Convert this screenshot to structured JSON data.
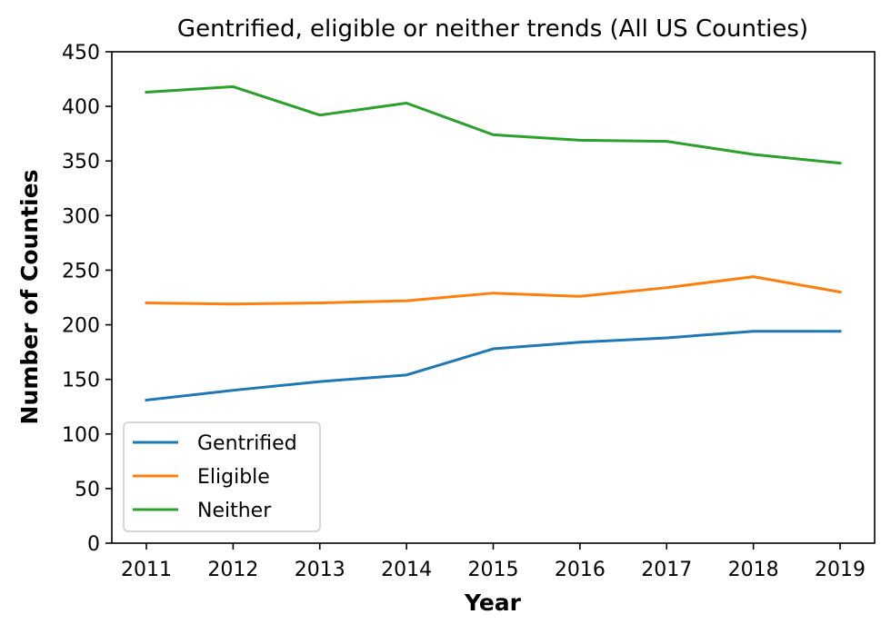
{
  "chart_data": {
    "type": "line",
    "title": "Gentrified, eligible or neither trends (All US Counties)",
    "xlabel": "Year",
    "ylabel": "Number of Counties",
    "x": [
      2011,
      2012,
      2013,
      2014,
      2015,
      2016,
      2017,
      2018,
      2019
    ],
    "xticks": [
      "2011",
      "2012",
      "2013",
      "2014",
      "2015",
      "2016",
      "2017",
      "2018",
      "2019"
    ],
    "yticks": [
      "0",
      "50",
      "100",
      "150",
      "200",
      "250",
      "300",
      "350",
      "400",
      "450"
    ],
    "ylim": [
      0,
      450
    ],
    "grid": false,
    "legend_position": "lower-left",
    "series": [
      {
        "name": "Gentrified",
        "color": "#1f77b4",
        "values": [
          131,
          140,
          148,
          154,
          178,
          184,
          188,
          194,
          194
        ]
      },
      {
        "name": "Eligible",
        "color": "#ff7f0e",
        "values": [
          220,
          219,
          220,
          222,
          229,
          226,
          234,
          244,
          230
        ]
      },
      {
        "name": "Neither",
        "color": "#2ca02c",
        "values": [
          413,
          418,
          392,
          403,
          374,
          369,
          368,
          356,
          348
        ]
      }
    ]
  }
}
